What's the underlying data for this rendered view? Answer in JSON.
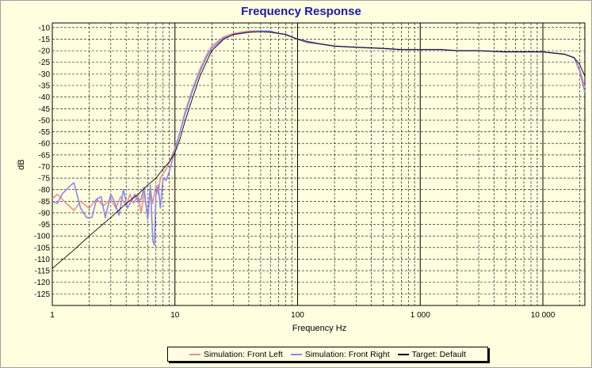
{
  "chart_data": {
    "type": "line",
    "title": "Frequency Response",
    "xlabel": "Frequency Hz",
    "ylabel": "dB",
    "x_scale": "log",
    "xlim": [
      1,
      22000
    ],
    "ylim": [
      -130,
      -8
    ],
    "x_ticks": [
      {
        "value": 1,
        "label": "1"
      },
      {
        "value": 10,
        "label": "10"
      },
      {
        "value": 100,
        "label": "100"
      },
      {
        "value": 1000,
        "label": "1 000"
      },
      {
        "value": 10000,
        "label": "10 000"
      }
    ],
    "y_ticks": [
      -10,
      -15,
      -20,
      -25,
      -30,
      -35,
      -40,
      -45,
      -50,
      -55,
      -60,
      -65,
      -70,
      -75,
      -80,
      -85,
      -90,
      -95,
      -100,
      -105,
      -110,
      -115,
      -120,
      -125
    ],
    "grid": true,
    "legend_position": "bottom",
    "series": [
      {
        "name": "Simulation: Front Left",
        "color": "#e89090",
        "x": [
          1,
          1.1,
          1.25,
          1.5,
          1.7,
          2,
          2.3,
          2.6,
          3,
          3.3,
          3.6,
          4,
          4.3,
          4.6,
          5,
          5.3,
          5.6,
          6,
          6.3,
          6.6,
          7,
          7.3,
          7.6,
          8,
          8.5,
          9,
          10,
          11,
          12,
          14,
          16,
          18,
          20,
          25,
          30,
          40,
          50,
          60,
          70,
          80,
          100,
          120,
          150,
          200,
          300,
          500,
          700,
          1000,
          1500,
          2000,
          3000,
          5000,
          7000,
          10000,
          15000,
          18000,
          20000,
          22000
        ],
        "y": [
          -84,
          -82,
          -85,
          -89,
          -85,
          -88,
          -84,
          -87,
          -84,
          -88,
          -83,
          -87,
          -82,
          -86,
          -82,
          -90,
          -81,
          -92,
          -80,
          -86,
          -78,
          -82,
          -75,
          -73,
          -71,
          -68,
          -62,
          -55,
          -47,
          -36,
          -28,
          -22,
          -18,
          -14,
          -12.5,
          -11.5,
          -11.5,
          -12,
          -12.5,
          -13,
          -15,
          -16,
          -17,
          -18,
          -18.5,
          -19,
          -19.5,
          -19.5,
          -19.5,
          -20,
          -20,
          -20.5,
          -20.5,
          -20.5,
          -21.5,
          -23,
          -28,
          -36
        ]
      },
      {
        "name": "Simulation: Front Right",
        "color": "#8888ee",
        "x": [
          1,
          1.1,
          1.2,
          1.35,
          1.5,
          1.7,
          1.9,
          2.1,
          2.3,
          2.5,
          2.7,
          3,
          3.2,
          3.5,
          3.8,
          4.1,
          4.4,
          4.7,
          5,
          5.3,
          5.6,
          6,
          6.3,
          6.6,
          6.8,
          7,
          7.3,
          7.6,
          8,
          8.5,
          9,
          10,
          11,
          12,
          14,
          16,
          18,
          20,
          25,
          30,
          40,
          50,
          60,
          70,
          80,
          100,
          120,
          150,
          200,
          300,
          500,
          700,
          1000,
          1500,
          2000,
          3000,
          5000,
          7000,
          10000,
          15000,
          18000,
          20000,
          22000
        ],
        "y": [
          -85,
          -86,
          -82,
          -79,
          -77,
          -88,
          -92,
          -92,
          -84,
          -83,
          -92,
          -82,
          -85,
          -91,
          -80,
          -88,
          -85,
          -82,
          -85,
          -84,
          -79,
          -93,
          -78,
          -102,
          -104,
          -82,
          -78,
          -88,
          -75,
          -76,
          -72,
          -63,
          -55,
          -48,
          -37,
          -29,
          -23,
          -19,
          -14.5,
          -13,
          -12,
          -11.5,
          -11.5,
          -12.5,
          -13,
          -15,
          -16.5,
          -17,
          -18,
          -18.5,
          -19,
          -19.5,
          -19.5,
          -19.5,
          -20,
          -20,
          -20.5,
          -20.5,
          -20.5,
          -21.5,
          -23,
          -29,
          -38
        ]
      },
      {
        "name": "Target: Default",
        "color": "#000000",
        "x": [
          1,
          1.5,
          2,
          3,
          4,
          5,
          6,
          7,
          8,
          9,
          10,
          11,
          12,
          14,
          16,
          18,
          20,
          25,
          30,
          40,
          50,
          60,
          70,
          80,
          100,
          120,
          150,
          200,
          300,
          500,
          700,
          1000,
          1500,
          2000,
          3000,
          5000,
          7000,
          10000,
          15000,
          18000,
          20000,
          22000
        ],
        "y": [
          -114,
          -106,
          -100,
          -92,
          -86,
          -82,
          -78,
          -75,
          -71,
          -68,
          -64,
          -58,
          -51,
          -40,
          -31,
          -25,
          -20,
          -15,
          -13,
          -12,
          -11.8,
          -12,
          -12.5,
          -13,
          -15,
          -16,
          -17,
          -18,
          -18.5,
          -19,
          -19.5,
          -19.5,
          -19.5,
          -20,
          -20,
          -20.5,
          -20.5,
          -20.5,
          -21.5,
          -23,
          -26,
          -31
        ]
      }
    ]
  }
}
